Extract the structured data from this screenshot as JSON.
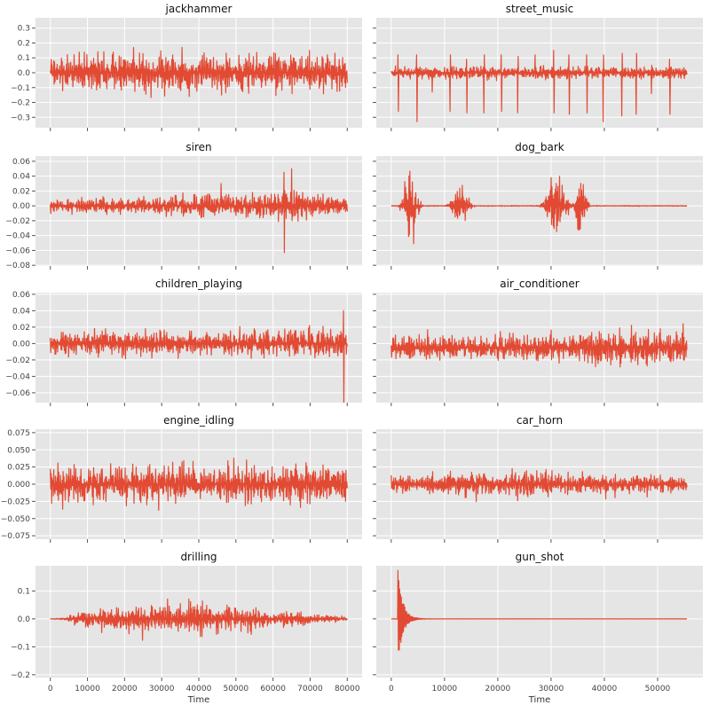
{
  "chart_data": [
    {
      "type": "line",
      "title": "jackhammer",
      "xlabel": "",
      "ylabel": "",
      "xlim": [
        -4000,
        84000
      ],
      "ylim": [
        -0.37,
        0.37
      ],
      "yticks": [
        -0.3,
        -0.2,
        -0.1,
        0.0,
        0.1,
        0.2,
        0.3
      ],
      "ytick_labels": [
        "−0.3",
        "−0.2",
        "−0.1",
        "0.0",
        "0.1",
        "0.2",
        "0.3"
      ],
      "xticks": [
        0,
        10000,
        20000,
        30000,
        40000,
        50000,
        60000,
        70000,
        80000
      ],
      "xtick_labels": [],
      "grid": true,
      "color": "#e24a33",
      "series": [
        {
          "x": [
            0,
            80000
          ],
          "y": [
            0.0,
            0.0
          ]
        }
      ],
      "waveform": {
        "x_end": 80000,
        "points": 700,
        "amplitude": 0.2,
        "peak": 0.35,
        "envelope": [
          [
            0,
            1.0
          ],
          [
            1,
            1.0
          ]
        ]
      }
    },
    {
      "type": "line",
      "title": "street_music",
      "xlabel": "",
      "ylabel": "",
      "xlim": [
        -2800,
        58500
      ],
      "ylim": [
        -0.37,
        0.37
      ],
      "yticks": [],
      "ytick_labels": [],
      "xticks": [
        0,
        10000,
        20000,
        30000,
        40000,
        50000
      ],
      "xtick_labels": [],
      "grid": true,
      "color": "#e24a33",
      "series": [
        {
          "x": [
            0,
            55500
          ],
          "y": [
            0.0,
            0.0
          ]
        }
      ],
      "waveform": {
        "x_end": 55500,
        "points": 700,
        "amplitude": 0.06,
        "peak": 0.12,
        "spikes": [
          [
            1300,
            0.26,
            0.12
          ],
          [
            4800,
            0.33,
            0.12
          ],
          [
            7700,
            0.13,
            0.05
          ],
          [
            11100,
            0.26,
            0.12
          ],
          [
            14200,
            0.27,
            0.09
          ],
          [
            17400,
            0.27,
            0.12
          ],
          [
            20700,
            0.26,
            0.12
          ],
          [
            23800,
            0.27,
            0.11
          ],
          [
            27000,
            0.28,
            0.12
          ],
          [
            30500,
            0.27,
            0.15
          ],
          [
            33400,
            0.28,
            0.12
          ],
          [
            36700,
            0.27,
            0.12
          ],
          [
            39800,
            0.33,
            0.12
          ],
          [
            43300,
            0.29,
            0.13
          ],
          [
            46000,
            0.28,
            0.13
          ],
          [
            48900,
            0.14,
            0.05
          ],
          [
            52300,
            0.28,
            0.09
          ]
        ]
      }
    },
    {
      "type": "line",
      "title": "siren",
      "xlabel": "",
      "ylabel": "",
      "xlim": [
        -4000,
        84000
      ],
      "ylim": [
        -0.081,
        0.067
      ],
      "yticks": [
        -0.08,
        -0.06,
        -0.04,
        -0.02,
        0.0,
        0.02,
        0.04,
        0.06
      ],
      "ytick_labels": [
        "−0.08",
        "−0.06",
        "−0.04",
        "−0.02",
        "0.00",
        "0.02",
        "0.04",
        "0.06"
      ],
      "xticks": [
        0,
        10000,
        20000,
        30000,
        40000,
        50000,
        60000,
        70000,
        80000
      ],
      "xtick_labels": [],
      "grid": true,
      "color": "#e24a33",
      "series": [
        {
          "x": [
            0,
            80000
          ],
          "y": [
            0.0,
            0.0
          ]
        }
      ],
      "waveform": {
        "x_end": 80000,
        "points": 700,
        "amplitude": 0.018,
        "peak": 0.063,
        "envelope": [
          [
            0,
            0.8
          ],
          [
            0.3,
            0.9
          ],
          [
            0.5,
            1.1
          ],
          [
            0.7,
            1.4
          ],
          [
            0.8,
            1.8
          ],
          [
            0.9,
            1.3
          ],
          [
            1,
            1.1
          ]
        ],
        "spikes": [
          [
            46000,
            0.062,
            0.03
          ],
          [
            63000,
            0.063,
            0.045
          ],
          [
            65000,
            0.077,
            0.05
          ]
        ]
      }
    },
    {
      "type": "line",
      "title": "dog_bark",
      "xlabel": "",
      "ylabel": "",
      "xlim": [
        -2800,
        58500
      ],
      "ylim": [
        -0.081,
        0.067
      ],
      "yticks": [],
      "ytick_labels": [],
      "xticks": [
        0,
        10000,
        20000,
        30000,
        40000,
        50000
      ],
      "xtick_labels": [],
      "grid": true,
      "color": "#e24a33",
      "series": [
        {
          "x": [
            0,
            55500
          ],
          "y": [
            0.0,
            0.0
          ]
        }
      ],
      "waveform": {
        "x_end": 55500,
        "points": 700,
        "amplitude": 0.0008,
        "peak": 0.002,
        "bursts": [
          [
            3700,
            1500,
            0.069
          ],
          [
            13000,
            1700,
            0.035
          ],
          [
            31000,
            2000,
            0.069
          ],
          [
            35500,
            1100,
            0.074
          ]
        ]
      }
    },
    {
      "type": "line",
      "title": "children_playing",
      "xlabel": "",
      "ylabel": "",
      "xlim": [
        -4000,
        84000
      ],
      "ylim": [
        -0.072,
        0.062
      ],
      "yticks": [
        -0.06,
        -0.04,
        -0.02,
        0.0,
        0.02,
        0.04,
        0.06
      ],
      "ytick_labels": [
        "−0.06",
        "−0.04",
        "−0.02",
        "0.00",
        "0.02",
        "0.04",
        "0.06"
      ],
      "xticks": [
        0,
        10000,
        20000,
        30000,
        40000,
        50000,
        60000,
        70000,
        80000
      ],
      "xtick_labels": [],
      "grid": true,
      "color": "#e24a33",
      "series": [
        {
          "x": [
            0,
            80000
          ],
          "y": [
            0.0,
            0.0
          ]
        }
      ],
      "waveform": {
        "x_end": 80000,
        "points": 700,
        "amplitude": 0.022,
        "peak": 0.058,
        "envelope": [
          [
            0,
            1.0
          ],
          [
            0.5,
            1.05
          ],
          [
            1,
            1.2
          ]
        ],
        "spikes": [
          [
            79000,
            0.072,
            0.04
          ]
        ]
      }
    },
    {
      "type": "line",
      "title": "air_conditioner",
      "xlabel": "",
      "ylabel": "",
      "xlim": [
        -2800,
        58500
      ],
      "ylim": [
        -0.072,
        0.062
      ],
      "yticks": [],
      "ytick_labels": [],
      "xticks": [
        0,
        10000,
        20000,
        30000,
        40000,
        50000
      ],
      "xtick_labels": [],
      "grid": true,
      "color": "#e24a33",
      "series": [
        {
          "x": [
            0,
            55500
          ],
          "y": [
            -0.005,
            -0.005
          ]
        }
      ],
      "waveform": {
        "x_end": 55500,
        "points": 700,
        "amplitude": 0.025,
        "peak": 0.06,
        "offset": -0.005,
        "envelope": [
          [
            0,
            1.0
          ],
          [
            0.35,
            0.9
          ],
          [
            0.6,
            1.05
          ],
          [
            0.75,
            1.35
          ],
          [
            0.9,
            1.5
          ],
          [
            1,
            1.4
          ]
        ]
      }
    },
    {
      "type": "line",
      "title": "engine_idling",
      "xlabel": "",
      "ylabel": "",
      "xlim": [
        -4000,
        84000
      ],
      "ylim": [
        -0.08,
        0.08
      ],
      "yticks": [
        -0.075,
        -0.05,
        -0.025,
        0.0,
        0.025,
        0.05,
        0.075
      ],
      "ytick_labels": [
        "−0.075",
        "−0.050",
        "−0.025",
        "0.000",
        "0.025",
        "0.050",
        "0.075"
      ],
      "xticks": [
        0,
        10000,
        20000,
        30000,
        40000,
        50000,
        60000,
        70000,
        80000
      ],
      "xtick_labels": [],
      "grid": true,
      "color": "#e24a33",
      "series": [
        {
          "x": [
            0,
            80000
          ],
          "y": [
            0.0,
            0.0
          ]
        }
      ],
      "waveform": {
        "x_end": 80000,
        "points": 700,
        "amplitude": 0.045,
        "peak": 0.072,
        "envelope": [
          [
            0,
            1.0
          ],
          [
            1,
            1.0
          ]
        ]
      }
    },
    {
      "type": "line",
      "title": "car_horn",
      "xlabel": "",
      "ylabel": "",
      "xlim": [
        -2800,
        58500
      ],
      "ylim": [
        -0.08,
        0.08
      ],
      "yticks": [],
      "ytick_labels": [],
      "xticks": [
        0,
        10000,
        20000,
        30000,
        40000,
        50000
      ],
      "xtick_labels": [],
      "grid": true,
      "color": "#e24a33",
      "series": [
        {
          "x": [
            0,
            55500
          ],
          "y": [
            0.0,
            0.0
          ]
        }
      ],
      "waveform": {
        "x_end": 55500,
        "points": 700,
        "amplitude": 0.025,
        "peak": 0.058,
        "envelope": [
          [
            0,
            0.7
          ],
          [
            0.2,
            1.0
          ],
          [
            0.35,
            1.2
          ],
          [
            0.55,
            1.2
          ],
          [
            0.8,
            0.9
          ],
          [
            1,
            0.8
          ]
        ]
      }
    },
    {
      "type": "line",
      "title": "drilling",
      "xlabel": "Time",
      "ylabel": "",
      "xlim": [
        -4000,
        84000
      ],
      "ylim": [
        -0.21,
        0.19
      ],
      "yticks": [
        -0.2,
        -0.1,
        0.0,
        0.1
      ],
      "ytick_labels": [
        "−0.2",
        "−0.1",
        "0.0",
        "0.1"
      ],
      "xticks": [
        0,
        10000,
        20000,
        30000,
        40000,
        50000,
        60000,
        70000,
        80000
      ],
      "xtick_labels": [
        "0",
        "10000",
        "20000",
        "30000",
        "40000",
        "50000",
        "60000",
        "70000",
        "80000"
      ],
      "grid": true,
      "color": "#e24a33",
      "series": [
        {
          "x": [
            0,
            80000
          ],
          "y": [
            0.0,
            0.0
          ]
        }
      ],
      "waveform": {
        "x_end": 80000,
        "points": 700,
        "amplitude": 0.09,
        "peak": 0.19,
        "envelope": [
          [
            0,
            0.03
          ],
          [
            0.05,
            0.05
          ],
          [
            0.07,
            0.35
          ],
          [
            0.2,
            0.75
          ],
          [
            0.35,
            1.0
          ],
          [
            0.5,
            1.0
          ],
          [
            0.65,
            0.75
          ],
          [
            0.8,
            0.45
          ],
          [
            0.92,
            0.25
          ],
          [
            1,
            0.1
          ]
        ]
      }
    },
    {
      "type": "line",
      "title": "gun_shot",
      "xlabel": "Time",
      "ylabel": "",
      "xlim": [
        -2800,
        58500
      ],
      "ylim": [
        -0.21,
        0.19
      ],
      "yticks": [],
      "ytick_labels": [],
      "xticks": [
        0,
        10000,
        20000,
        30000,
        40000,
        50000
      ],
      "xtick_labels": [
        "0",
        "10000",
        "20000",
        "30000",
        "40000",
        "50000"
      ],
      "grid": true,
      "color": "#e24a33",
      "series": [
        {
          "x": [
            0,
            55500
          ],
          "y": [
            0.0,
            0.0
          ]
        }
      ],
      "waveform": {
        "x_end": 55500,
        "points": 700,
        "amplitude": 0.0005,
        "peak": 0.2,
        "decay": {
          "start": 1200,
          "peak_hi": 0.17,
          "peak_lo": -0.2,
          "tau": 900
        }
      }
    }
  ]
}
